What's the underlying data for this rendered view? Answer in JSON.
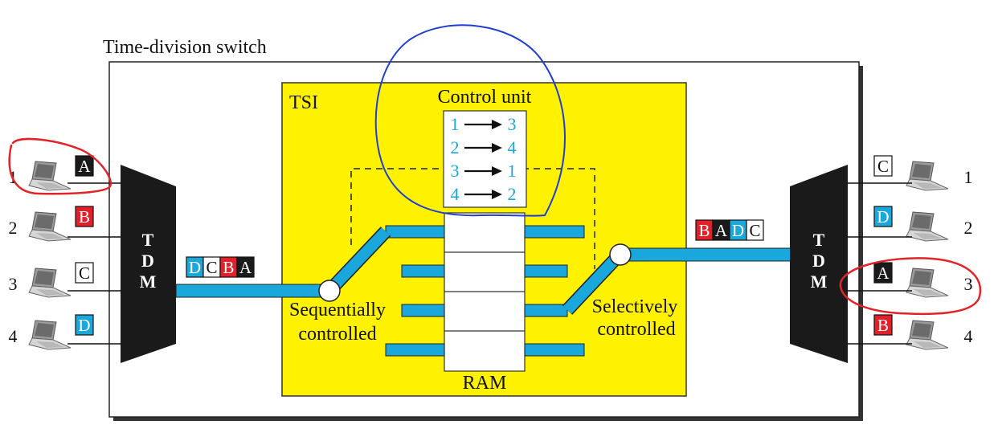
{
  "title": "Time-division switch",
  "tsi_label": "TSI",
  "control_unit": {
    "label": "Control unit",
    "rows": [
      {
        "from": "1",
        "to": "3"
      },
      {
        "from": "2",
        "to": "4"
      },
      {
        "from": "3",
        "to": "1"
      },
      {
        "from": "4",
        "to": "2"
      }
    ]
  },
  "ram_label": "RAM",
  "tdm_label": [
    "T",
    "D",
    "M"
  ],
  "sequential_label": [
    "Sequentially",
    "controlled"
  ],
  "selective_label": [
    "Selectively",
    "controlled"
  ],
  "inputs": [
    {
      "num": "1",
      "slot": "A"
    },
    {
      "num": "2",
      "slot": "B"
    },
    {
      "num": "3",
      "slot": "C"
    },
    {
      "num": "4",
      "slot": "D"
    }
  ],
  "outputs": [
    {
      "num": "1",
      "slot": "C"
    },
    {
      "num": "2",
      "slot": "D"
    },
    {
      "num": "3",
      "slot": "A"
    },
    {
      "num": "4",
      "slot": "B"
    }
  ],
  "input_frame": [
    "D",
    "C",
    "B",
    "A"
  ],
  "output_frame": [
    "B",
    "A",
    "D",
    "C"
  ],
  "slot_colors": {
    "A": {
      "fill": "#1a1a1a",
      "text": "#ffffff"
    },
    "B": {
      "fill": "#e2202a",
      "text": "#ffffff"
    },
    "C": {
      "fill": "#ffffff",
      "text": "#111111"
    },
    "D": {
      "fill": "#1aa7dc",
      "text": "#ffffff"
    }
  },
  "colors": {
    "tsi_fill": "#fff200",
    "bus": "#1aa7dc",
    "annotation_red": "#e0242a",
    "annotation_blue": "#1f3fd0"
  },
  "icons": [
    "laptop-icon"
  ]
}
